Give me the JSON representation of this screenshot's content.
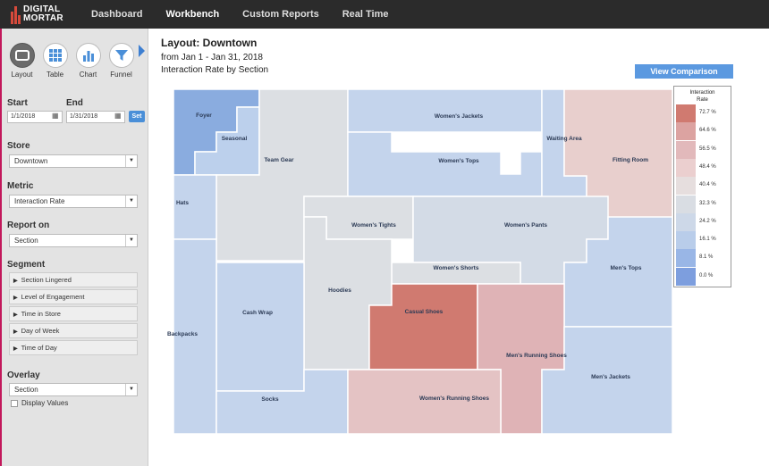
{
  "brand": {
    "line1": "DIGITAL",
    "line2": "MORTAR"
  },
  "nav": [
    {
      "label": "Dashboard",
      "active": false
    },
    {
      "label": "Workbench",
      "active": true
    },
    {
      "label": "Custom Reports",
      "active": false
    },
    {
      "label": "Real Time",
      "active": false
    }
  ],
  "tools": [
    {
      "label": "Layout",
      "icon": "layout-icon",
      "selected": true
    },
    {
      "label": "Table",
      "icon": "table-icon",
      "selected": false
    },
    {
      "label": "Chart",
      "icon": "bar-chart-icon",
      "selected": false
    },
    {
      "label": "Funnel",
      "icon": "funnel-icon",
      "selected": false
    }
  ],
  "dates": {
    "start_label": "Start",
    "end_label": "End",
    "start_value": "1/1/2018",
    "end_value": "1/31/2018",
    "set_label": "Set"
  },
  "store": {
    "label": "Store",
    "value": "Downtown"
  },
  "metric": {
    "label": "Metric",
    "value": "Interaction Rate"
  },
  "report_on": {
    "label": "Report on",
    "value": "Section"
  },
  "segment": {
    "label": "Segment",
    "items": [
      "Section Lingered",
      "Level of Engagement",
      "Time in Store",
      "Day of Week",
      "Time of Day"
    ]
  },
  "overlay": {
    "label": "Overlay",
    "value": "Section",
    "display_values": "Display Values"
  },
  "header": {
    "title": "Layout: Downtown",
    "date_range": "from Jan 1 - Jan 31, 2018",
    "subtitle": "Interaction Rate by Section"
  },
  "view_comparison": "View Comparison",
  "legend": {
    "title_line1": "Interaction",
    "title_line2": "Rate",
    "entries": [
      {
        "label": "72.7 %",
        "color": "#d07a70"
      },
      {
        "label": "64.6 %",
        "color": "#dca3a1"
      },
      {
        "label": "56.5 %",
        "color": "#e2b9bb"
      },
      {
        "label": "48.4 %",
        "color": "#ebcfcf"
      },
      {
        "label": "40.4 %",
        "color": "#e6dede"
      },
      {
        "label": "32.3 %",
        "color": "#d9dde3"
      },
      {
        "label": "24.2 %",
        "color": "#cdd8e8"
      },
      {
        "label": "16.1 %",
        "color": "#b9cdea"
      },
      {
        "label": "8.1 %",
        "color": "#99b6e6"
      },
      {
        "label": "0.0 %",
        "color": "#7d9ede"
      }
    ]
  },
  "sections": [
    {
      "name": "Foyer",
      "color": "#8aacdf"
    },
    {
      "name": "Seasonal",
      "color": "#bcd0ec"
    },
    {
      "name": "Team Gear",
      "color": "#dcdfe3"
    },
    {
      "name": "Women's Jackets",
      "color": "#c4d4ec"
    },
    {
      "name": "Women's Tops",
      "color": "#c4d4ec"
    },
    {
      "name": "Waiting Area",
      "color": "#c4d4ec"
    },
    {
      "name": "Fitting Room",
      "color": "#e8cfcd"
    },
    {
      "name": "Hats",
      "color": "#c4d4ec"
    },
    {
      "name": "Women's Tights",
      "color": "#dcdfe3"
    },
    {
      "name": "Women's Pants",
      "color": "#d3dbe6"
    },
    {
      "name": "Women's Shorts",
      "color": "#dcdfe3"
    },
    {
      "name": "Hoodies",
      "color": "#dcdfe3"
    },
    {
      "name": "Men's Tops",
      "color": "#c4d4ec"
    },
    {
      "name": "Cash Wrap",
      "color": "#c4d4ec"
    },
    {
      "name": "Casual Shoes",
      "color": "#d07a70"
    },
    {
      "name": "Men's Running Shoes",
      "color": "#dfb3b6"
    },
    {
      "name": "Backpacks",
      "color": "#c4d4ec"
    },
    {
      "name": "Socks",
      "color": "#c4d4ec"
    },
    {
      "name": "Women's Running Shoes",
      "color": "#e4c3c4"
    },
    {
      "name": "Men's Jackets",
      "color": "#c4d4ec"
    }
  ]
}
